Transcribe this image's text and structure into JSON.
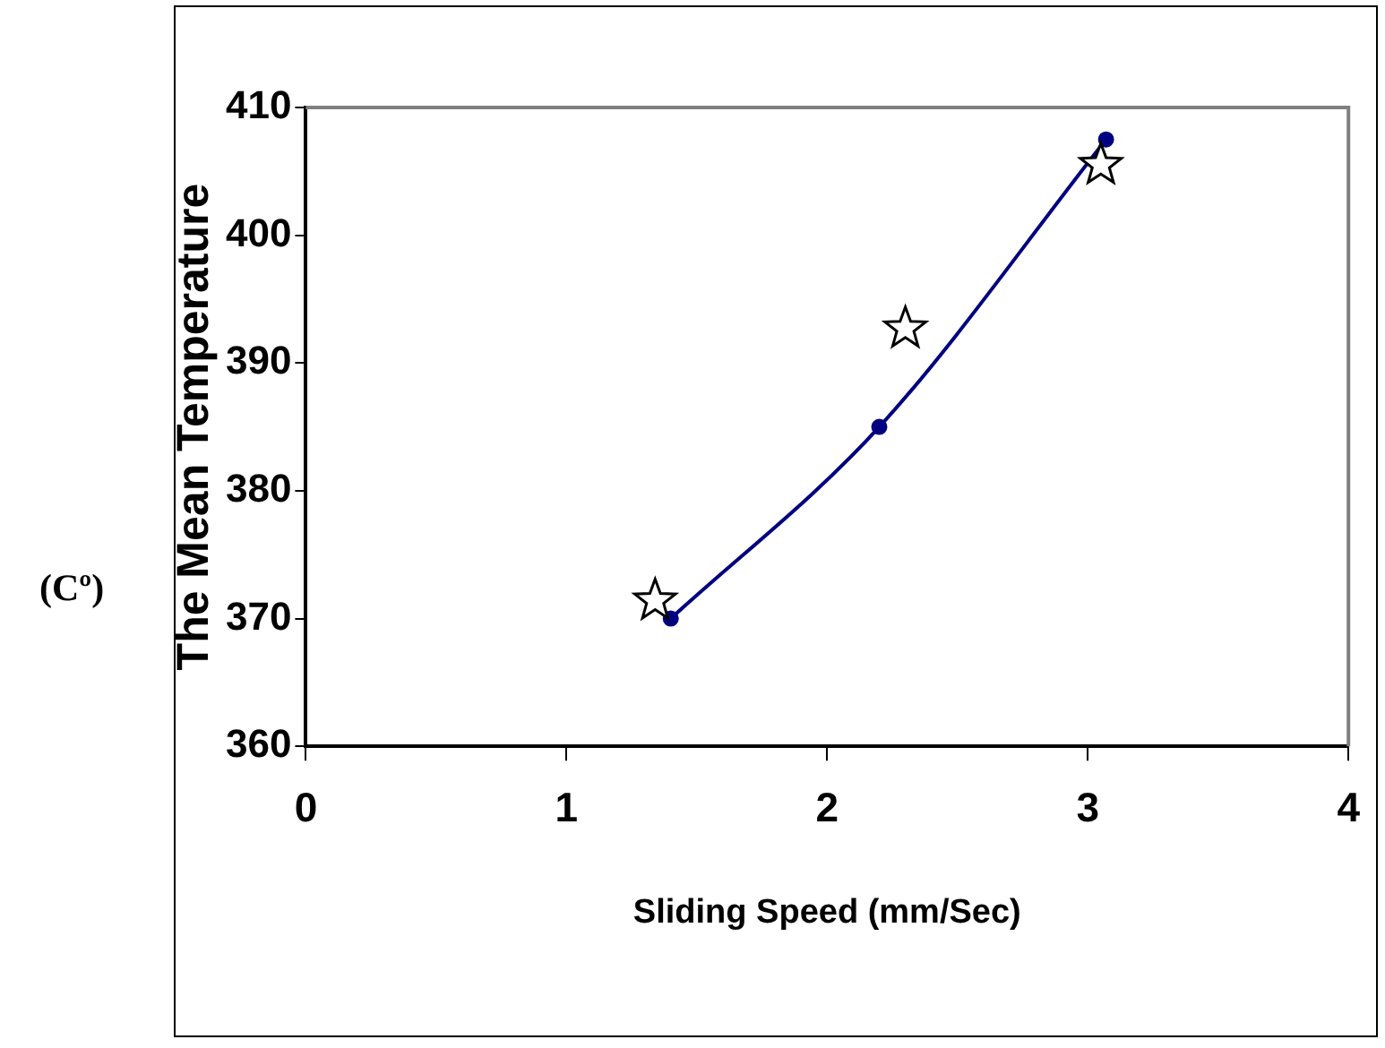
{
  "chart_data": {
    "type": "line",
    "xlabel": "Sliding Speed (mm/Sec)",
    "ylabel": "The Mean Temperature",
    "annotations": [
      "(Cº)"
    ],
    "xlim": [
      0,
      4
    ],
    "xticks": [
      0,
      1,
      2,
      3,
      4
    ],
    "ylim": [
      360,
      410
    ],
    "yticks": [
      360,
      370,
      380,
      390,
      400,
      410
    ],
    "grid": false,
    "legend": false,
    "series": [
      {
        "color": "#000080",
        "marker": "circle",
        "line_style": "solid",
        "x": [
          1.4,
          2.2,
          3.07
        ],
        "values": [
          370,
          385,
          407.5
        ]
      },
      {
        "type": "scatter",
        "color": "#000000",
        "marker": "star",
        "x": [
          1.34,
          2.3,
          3.05
        ],
        "values": [
          371.4,
          392.7,
          405.5
        ]
      }
    ]
  }
}
